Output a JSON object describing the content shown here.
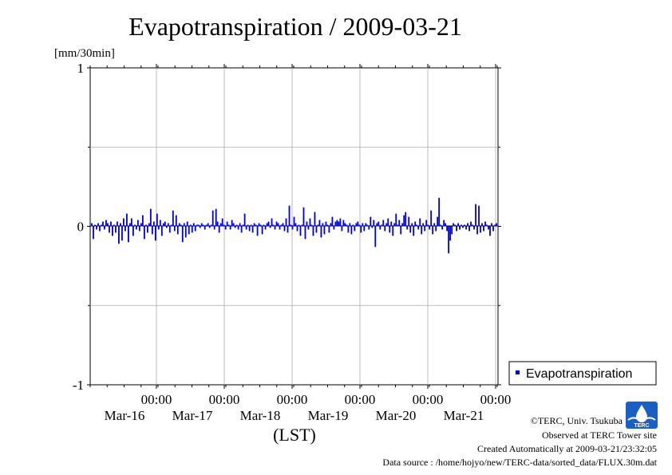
{
  "chart_data": {
    "type": "bar",
    "title": "Evapotranspiration / 2009-03-21",
    "unit_label": "[mm/30min]",
    "ylim": [
      -1,
      1
    ],
    "y_ticks": [
      "1",
      "0",
      "-1"
    ],
    "x_range_days": [
      "2009-03-15 12:00",
      "2009-03-21 24:00"
    ],
    "x_ticks": [
      {
        "time": "00:00",
        "date": "Mar-16"
      },
      {
        "time": "00:00",
        "date": "Mar-17"
      },
      {
        "time": "00:00",
        "date": "Mar-18"
      },
      {
        "time": "00:00",
        "date": "Mar-19"
      },
      {
        "time": "00:00",
        "date": "Mar-20"
      },
      {
        "time": "00:00",
        "date": "Mar-21"
      }
    ],
    "xlabel": "(LST)",
    "grid": true,
    "legend_position": "right",
    "color": "#0000cc",
    "series": [
      {
        "name": "Evapotranspiration",
        "values": [
          0.02,
          -0.08,
          0.01,
          -0.02,
          0.02,
          -0.03,
          0.01,
          0.03,
          -0.02,
          0.04,
          0.02,
          -0.04,
          0.03,
          -0.06,
          0.01,
          -0.04,
          0.03,
          -0.11,
          0.02,
          -0.09,
          0.05,
          -0.03,
          0.08,
          -0.1,
          0.02,
          0.05,
          -0.06,
          0.01,
          -0.02,
          0.04,
          -0.03,
          0.02,
          0.07,
          -0.08,
          0.01,
          -0.04,
          0.02,
          0.11,
          -0.05,
          0.03,
          -0.09,
          0.08,
          -0.02,
          0.04,
          -0.06,
          0.02,
          0.03,
          -0.01,
          0.02,
          -0.04,
          0.01,
          0.1,
          -0.03,
          0.07,
          -0.05,
          0.02,
          0.01,
          -0.1,
          0.02,
          -0.07,
          0.03,
          -0.05,
          0.01,
          -0.04,
          0.02,
          -0.03,
          0.01,
          0.01,
          -0.01,
          0.02,
          0.01,
          -0.02,
          0.01,
          0.02,
          -0.01,
          0.01,
          0.1,
          -0.02,
          0.11,
          0.03,
          -0.04,
          0.02,
          0.05,
          0.01,
          -0.02,
          0.03,
          0.01,
          -0.02,
          0.04,
          0.02,
          -0.01,
          0.01,
          -0.02,
          0.02,
          -0.04,
          0.01,
          0.08,
          -0.02,
          0.01,
          -0.03,
          0.01,
          -0.04,
          0.02,
          0.01,
          -0.06,
          0.02,
          0.01,
          -0.05,
          0.01,
          -0.02,
          0.02,
          0.03,
          -0.01,
          0.05,
          0.01,
          -0.02,
          0.03,
          0.02,
          -0.02,
          0.01,
          0.02,
          -0.03,
          0.05,
          -0.04,
          0.13,
          0.01,
          -0.02,
          0.06,
          0.02,
          -0.03,
          0.01,
          -0.06,
          0.01,
          0.12,
          -0.08,
          0.03,
          -0.02,
          0.05,
          0.01,
          -0.06,
          0.09,
          -0.04,
          0.01,
          0.04,
          -0.07,
          0.02,
          -0.05,
          0.03,
          0.01,
          -0.04,
          0.02,
          0.06,
          -0.02,
          0.03,
          0.04,
          0.03,
          0.05,
          -0.03,
          0.04,
          0.02,
          0.01,
          -0.04,
          0.02,
          -0.05,
          0.01,
          -0.03,
          0.02,
          0.03,
          0.01,
          -0.04,
          0.02,
          -0.03,
          0.02,
          0.01,
          -0.02,
          0.06,
          -0.01,
          0.04,
          -0.13,
          0.02,
          0.03,
          -0.02,
          0.01,
          0.04,
          -0.03,
          0.02,
          0.05,
          -0.04,
          0.03,
          -0.06,
          0.02,
          0.08,
          0.01,
          0.04,
          -0.05,
          0.02,
          0.07,
          0.09,
          -0.02,
          0.06,
          -0.04,
          0.02,
          -0.06,
          0.03,
          0.01,
          -0.02,
          0.05,
          -0.05,
          0.02,
          -0.03,
          0.04,
          0.01,
          -0.02,
          0.1,
          -0.05,
          0.02,
          -0.03,
          0.06,
          0.18,
          0.01,
          -0.02,
          0.04,
          0.02,
          -0.03,
          -0.17,
          -0.09,
          -0.05,
          0.02,
          0.01,
          -0.03,
          0.02,
          -0.02,
          0.01,
          -0.01,
          0.01,
          -0.02,
          0.02,
          -0.03,
          0.03,
          0.01,
          -0.02,
          0.14,
          -0.05,
          0.13,
          -0.04,
          0.02,
          -0.03,
          0.03,
          0.01,
          -0.02,
          -0.06,
          0.02,
          -0.03,
          0.01,
          0.02
        ]
      }
    ]
  },
  "legend": {
    "label": "Evapotranspiration"
  },
  "credits": {
    "copyright": "©TERC, Univ. Tsukuba",
    "observed": "Observed at TERC Tower site",
    "created": "Created Automatically at 2009-03-21/23:32:05",
    "source": "Data source : /home/hojyo/new/TERC-data/sorted_data/FLUX.30m.dat"
  },
  "logo": {
    "text": "TERC"
  }
}
